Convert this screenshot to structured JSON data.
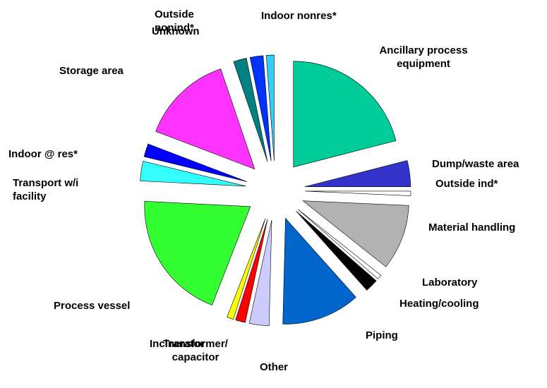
{
  "chart_data": {
    "type": "pie",
    "categories": [
      "Ancillary process equipment",
      "Dump/waste area",
      "Outside ind*",
      "Material handling",
      "Laboratory",
      "Heating/cooling",
      "Piping",
      "Other",
      "Transformer/ capacitor",
      "Incinerator",
      "Process vessel",
      "Transport w/i facility",
      "Indoor @ res*",
      "Storage area",
      "Unknown",
      "Outside nonind*",
      "Indoor nonres*"
    ],
    "values": [
      21,
      4,
      0.7,
      10,
      0.7,
      2,
      12,
      3,
      1.5,
      1,
      19.9,
      3,
      2,
      14,
      2,
      2,
      1.2
    ],
    "colors": [
      "#00cc99",
      "#3333cc",
      "#ffffff",
      "#b2b2b2",
      "#ffffff",
      "#000000",
      "#0066cc",
      "#ccccff",
      "#ff0000",
      "#ffff00",
      "#33ff33",
      "#33ffff",
      "#0000ff",
      "#ff33ff",
      "#008080",
      "#0033ff",
      "#33ccff"
    ]
  }
}
